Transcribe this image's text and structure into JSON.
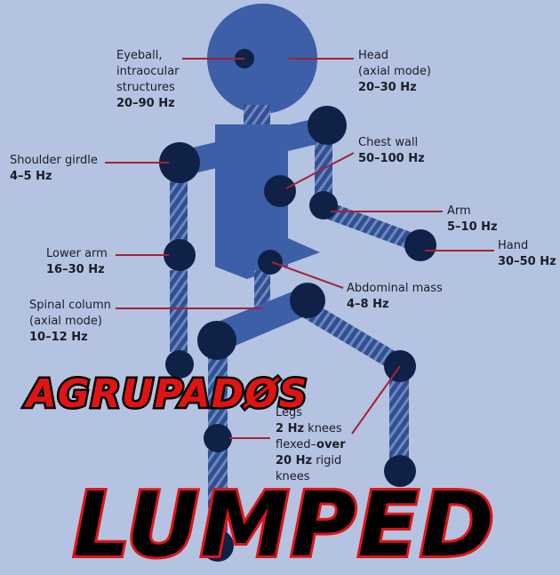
{
  "labels": {
    "eyeball": {
      "line1": "Eyeball,",
      "line2": "intraocular",
      "line3": "structures",
      "freq": "20–90 Hz"
    },
    "head": {
      "line1": "Head",
      "line2": "(axial mode)",
      "freq": "20–30 Hz"
    },
    "chest_wall": {
      "line1": "Chest wall",
      "freq": "50–100 Hz"
    },
    "shoulder_girdle": {
      "line1": "Shoulder girdle",
      "freq": "4–5 Hz"
    },
    "arm": {
      "line1": "Arm",
      "freq": "5–10 Hz"
    },
    "hand": {
      "line1": "Hand",
      "freq": "30–50 Hz"
    },
    "lower_arm": {
      "line1": "Lower arm",
      "freq": "16–30 Hz"
    },
    "abdominal_mass": {
      "line1": "Abdominal mass",
      "freq": "4–8 Hz"
    },
    "spinal_column": {
      "line1": "Spinal column",
      "line2": "(axial mode)",
      "freq": "10–12 Hz"
    },
    "legs": {
      "line1": "Legs",
      "freq_a": "2 Hz",
      "text_a": " knees",
      "text_b": "flexed–",
      "freq_b": "over",
      "freq_c": "20 Hz",
      "text_c": " rigid",
      "text_d": "knees"
    }
  },
  "overlay": {
    "word1": "AGRUPADØS",
    "word2": "LUMPED"
  },
  "colors": {
    "background": "#b4c3e1",
    "body_blue": "#3c5fa8",
    "joint_navy": "#0f2146",
    "leader_red": "#a2233a",
    "overlay_red": "#e01414",
    "overlay_black": "#000000"
  }
}
